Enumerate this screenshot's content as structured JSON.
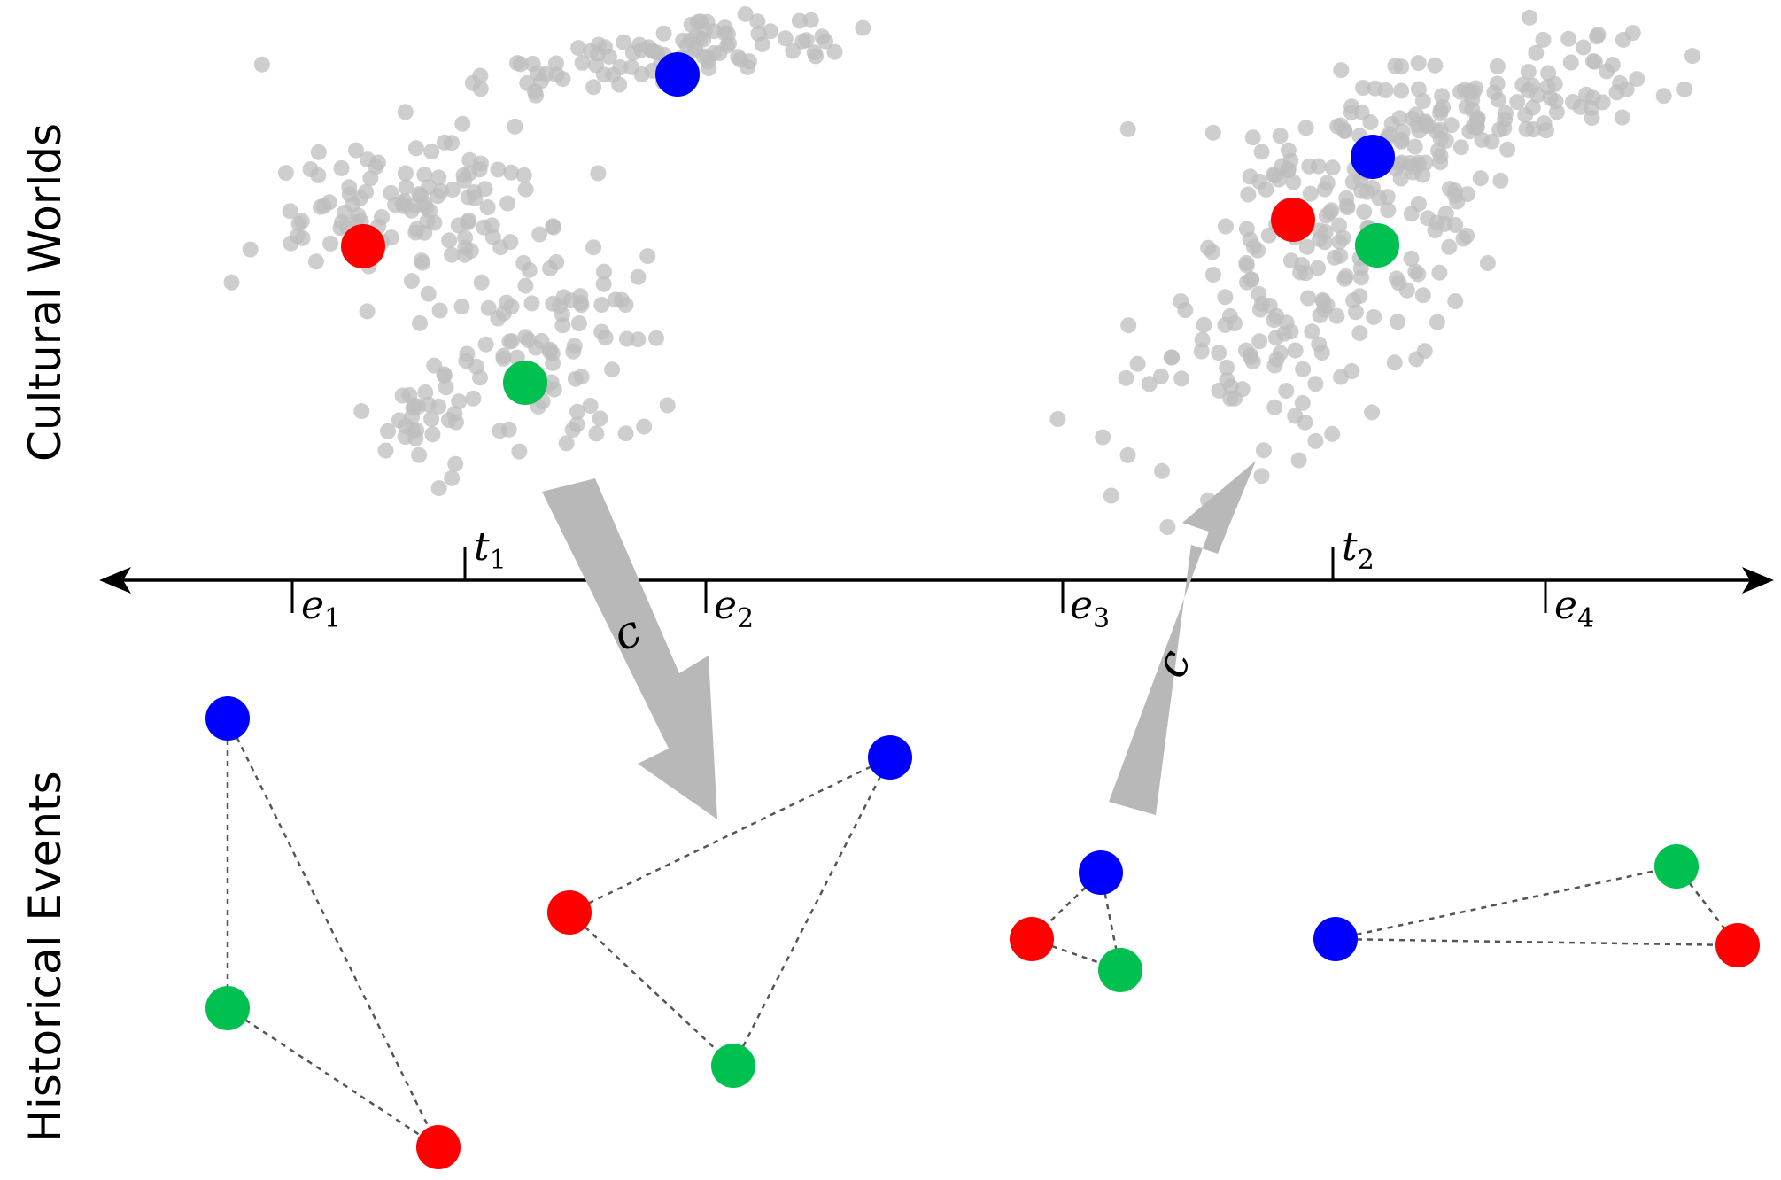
{
  "labels": {
    "top_side": "Cultural Worlds",
    "bottom_side": "Historical Events"
  },
  "timeline": {
    "time_markers": [
      {
        "letter": "t",
        "sub": "1"
      },
      {
        "letter": "t",
        "sub": "2"
      }
    ],
    "event_markers": [
      {
        "letter": "e",
        "sub": "1"
      },
      {
        "letter": "e",
        "sub": "2"
      },
      {
        "letter": "e",
        "sub": "3"
      },
      {
        "letter": "e",
        "sub": "4"
      }
    ]
  },
  "arrows": [
    {
      "label": "c",
      "direction": "down"
    },
    {
      "label": "c",
      "direction": "up"
    }
  ],
  "colors": {
    "red": "#ff0000",
    "green": "#00c050",
    "blue": "#0000ff",
    "cloud": "#bdbdbd",
    "arrow": "#b8b8b8",
    "axis": "#000000",
    "edge": "#555555"
  },
  "events": [
    {
      "marker": "e1",
      "nodes": [
        "blue",
        "green",
        "red"
      ]
    },
    {
      "marker": "e2",
      "nodes": [
        "blue",
        "red",
        "green"
      ]
    },
    {
      "marker": "e3",
      "nodes": [
        "blue",
        "red",
        "green"
      ]
    },
    {
      "marker": "e4",
      "nodes": [
        "blue",
        "green",
        "red"
      ]
    }
  ]
}
